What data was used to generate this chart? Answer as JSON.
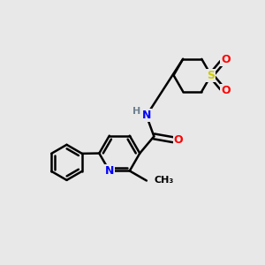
{
  "bg_color": "#e8e8e8",
  "bond_color": "#000000",
  "bond_width": 1.8,
  "N_color": "#0000ff",
  "O_color": "#ff0000",
  "S_color": "#cccc00",
  "H_color": "#708090",
  "font_size": 9,
  "fig_size": [
    3.0,
    3.0
  ],
  "dpi": 100,
  "xlim": [
    0,
    10
  ],
  "ylim": [
    0,
    10
  ]
}
